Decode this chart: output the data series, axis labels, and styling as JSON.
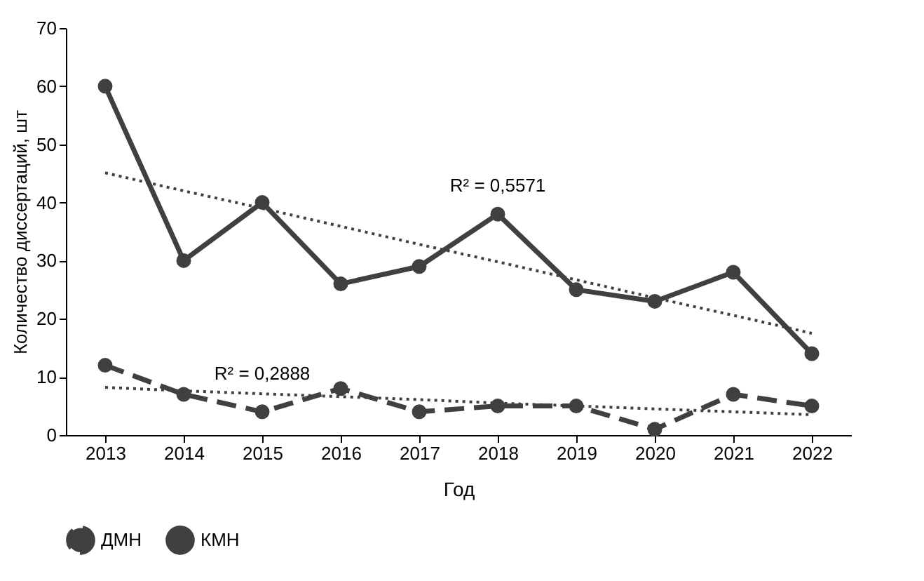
{
  "chart_data": {
    "type": "line",
    "xlabel": "Год",
    "ylabel": "Количество диссертаций, шт",
    "categories": [
      "2013",
      "2014",
      "2015",
      "2016",
      "2017",
      "2018",
      "2019",
      "2020",
      "2021",
      "2022"
    ],
    "series": [
      {
        "name": "ДМН",
        "color": "#404040",
        "line_style": "dashed",
        "marker": "circle",
        "values": [
          12,
          7,
          4,
          8,
          4,
          5,
          5,
          1,
          7,
          5
        ]
      },
      {
        "name": "КМН",
        "color": "#404040",
        "line_style": "solid",
        "marker": "circle",
        "values": [
          60,
          30,
          40,
          26,
          29,
          38,
          25,
          23,
          28,
          14
        ]
      },
      {
        "type": "line",
        "color": "#404040",
        "line_style": "dotted",
        "marker": "none",
        "values": [
          8.2,
          7.6,
          7.1,
          6.6,
          6.1,
          5.5,
          5.0,
          4.5,
          4.0,
          3.5
        ]
      },
      {
        "type": "line",
        "color": "#404040",
        "line_style": "dotted",
        "marker": "none",
        "values": [
          45.1,
          42.0,
          39.0,
          35.9,
          32.8,
          29.8,
          26.7,
          23.6,
          20.6,
          17.5
        ]
      }
    ],
    "annotations": [
      "R² = 0,2888",
      "R² = 0,5571"
    ],
    "ylim": [
      0,
      70
    ],
    "yticks": [
      0,
      10,
      20,
      30,
      40,
      50,
      60,
      70
    ],
    "grid": false,
    "legend": "bottom"
  }
}
